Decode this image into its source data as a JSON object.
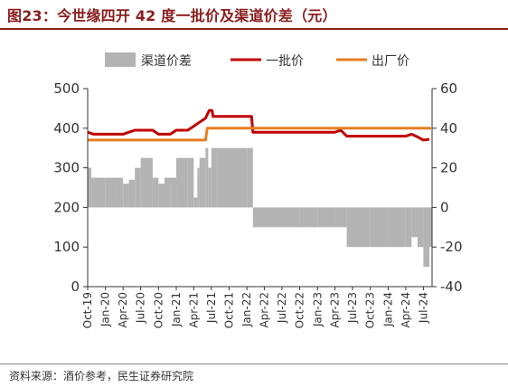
{
  "header": {
    "title": "图23：今世缘四开 42 度一批价及渠道价差（元）"
  },
  "footer": {
    "source": "资料来源：酒价参考，民生证券研究院"
  },
  "colors": {
    "title": "#8a1c1c",
    "spread": "#b3b3b3",
    "wholesale": "#c00000",
    "factory": "#e67e22"
  },
  "chart_data": {
    "type": "bar+line",
    "title": "",
    "legend_position": "top",
    "legend": [
      "渠道价差",
      "一批价",
      "出厂价"
    ],
    "left_axis": {
      "ylim": [
        0,
        500
      ],
      "ticks": [
        "0",
        "100",
        "200",
        "300",
        "400",
        "500"
      ]
    },
    "right_axis": {
      "ylim": [
        -40,
        60
      ],
      "ticks": [
        "-40",
        "-20",
        "0",
        "20",
        "40",
        "60"
      ]
    },
    "x_ticks": [
      "Oct-19",
      "Jan-20",
      "Apr-20",
      "Jul-20",
      "Oct-20",
      "Jan-21",
      "Apr-21",
      "Jul-21",
      "Oct-21",
      "Jan-22",
      "Apr-22",
      "Jul-22",
      "Oct-22",
      "Jan-23",
      "Apr-23",
      "Jul-23",
      "Oct-23",
      "Jan-24",
      "Apr-24",
      "Jul-24"
    ],
    "x_range": [
      "2019-10-01",
      "2024-08-15"
    ],
    "series": [
      {
        "name": "渠道价差",
        "axis": "right",
        "kind": "bar",
        "points": [
          [
            "2019-10-01",
            20
          ],
          [
            "2019-10-20",
            15
          ],
          [
            "2020-01-01",
            15
          ],
          [
            "2020-03-01",
            15
          ],
          [
            "2020-04-01",
            12
          ],
          [
            "2020-05-01",
            14
          ],
          [
            "2020-06-01",
            20
          ],
          [
            "2020-07-01",
            25
          ],
          [
            "2020-09-01",
            15
          ],
          [
            "2020-10-01",
            12
          ],
          [
            "2020-11-01",
            15
          ],
          [
            "2020-12-01",
            15
          ],
          [
            "2021-01-01",
            25
          ],
          [
            "2021-03-01",
            25
          ],
          [
            "2021-04-01",
            5
          ],
          [
            "2021-04-20",
            20
          ],
          [
            "2021-05-01",
            25
          ],
          [
            "2021-06-01",
            30
          ],
          [
            "2021-06-15",
            20
          ],
          [
            "2021-07-01",
            30
          ],
          [
            "2021-08-01",
            30
          ],
          [
            "2021-10-01",
            30
          ],
          [
            "2022-01-01",
            30
          ],
          [
            "2022-02-01",
            -10
          ],
          [
            "2022-06-01",
            -10
          ],
          [
            "2022-10-01",
            -10
          ],
          [
            "2023-01-01",
            -10
          ],
          [
            "2023-04-01",
            -10
          ],
          [
            "2023-06-01",
            -20
          ],
          [
            "2023-10-01",
            -20
          ],
          [
            "2024-01-01",
            -20
          ],
          [
            "2024-04-01",
            -20
          ],
          [
            "2024-05-01",
            -15
          ],
          [
            "2024-06-01",
            -20
          ],
          [
            "2024-07-01",
            -30
          ],
          [
            "2024-08-01",
            -20
          ]
        ]
      },
      {
        "name": "一批价",
        "axis": "left",
        "kind": "line",
        "points": [
          [
            "2019-10-01",
            390
          ],
          [
            "2019-11-01",
            385
          ],
          [
            "2020-03-01",
            385
          ],
          [
            "2020-04-01",
            385
          ],
          [
            "2020-05-01",
            390
          ],
          [
            "2020-06-01",
            395
          ],
          [
            "2020-09-01",
            395
          ],
          [
            "2020-10-01",
            385
          ],
          [
            "2020-12-01",
            385
          ],
          [
            "2021-01-01",
            395
          ],
          [
            "2021-03-01",
            395
          ],
          [
            "2021-04-01",
            405
          ],
          [
            "2021-05-01",
            415
          ],
          [
            "2021-06-01",
            425
          ],
          [
            "2021-06-20",
            445
          ],
          [
            "2021-07-05",
            445
          ],
          [
            "2021-07-10",
            430
          ],
          [
            "2021-09-01",
            430
          ],
          [
            "2022-01-25",
            430
          ],
          [
            "2022-02-01",
            390
          ],
          [
            "2022-06-01",
            390
          ],
          [
            "2022-10-01",
            390
          ],
          [
            "2023-01-01",
            390
          ],
          [
            "2023-04-01",
            390
          ],
          [
            "2023-05-01",
            395
          ],
          [
            "2023-06-01",
            380
          ],
          [
            "2023-10-01",
            380
          ],
          [
            "2024-01-01",
            380
          ],
          [
            "2024-04-01",
            380
          ],
          [
            "2024-05-01",
            385
          ],
          [
            "2024-06-01",
            378
          ],
          [
            "2024-07-01",
            370
          ],
          [
            "2024-08-01",
            372
          ]
        ]
      },
      {
        "name": "出厂价",
        "axis": "left",
        "kind": "line",
        "points": [
          [
            "2019-10-01",
            370
          ],
          [
            "2021-06-01",
            370
          ],
          [
            "2021-06-10",
            400
          ],
          [
            "2024-08-10",
            400
          ]
        ]
      }
    ]
  }
}
